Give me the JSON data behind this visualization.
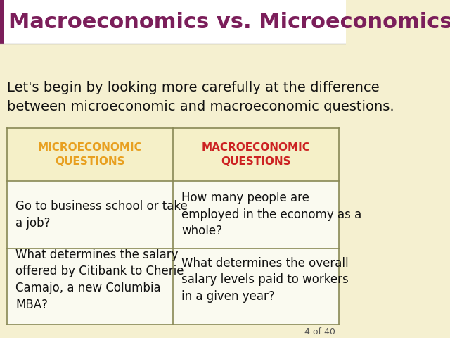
{
  "title": "Macroeconomics vs. Microeconomics",
  "title_color": "#7B1E5A",
  "title_fontsize": 22,
  "bg_color": "#F5F0D0",
  "subtitle": "Let's begin by looking more carefully at the difference\nbetween microeconomic and macroeconomic questions.",
  "subtitle_fontsize": 14,
  "subtitle_color": "#111111",
  "header_left": "MICROECONOMIC\nQUESTIONS",
  "header_right": "MACROECONOMIC\nQUESTIONS",
  "header_left_color": "#E8A020",
  "header_right_color": "#CC2222",
  "header_bg": "#F5F0C8",
  "cell_bg": "#FAFAF0",
  "table_border_color": "#888855",
  "table_fontsize": 12,
  "rows": [
    [
      "Go to business school or take\na job?",
      "How many people are\nemployed in the economy as a\nwhole?"
    ],
    [
      "What determines the salary\noffered by Citibank to Cherie\nCamajo, a new Columbia\nMBA?",
      "What determines the overall\nsalary levels paid to workers\nin a given year?"
    ]
  ],
  "footer_text": "4 of 40",
  "footer_color": "#555555",
  "accent_bar_color": "#7B1E5A",
  "page_bg": "#F5F0D0",
  "title_bar_color": "#FFFFFF",
  "divider_color": "#AAAAAA"
}
